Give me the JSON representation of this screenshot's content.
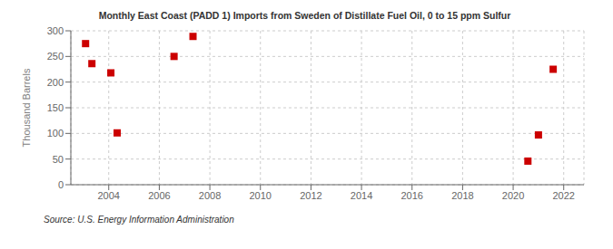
{
  "chart_data": {
    "type": "scatter",
    "title": "Monthly East Coast (PADD 1) Imports from Sweden of Distillate Fuel Oil, 0 to 15 ppm Sulfur",
    "ylabel": "Thousand Barrels",
    "annotations": [
      "Source: U.S. Energy Information Administration"
    ],
    "x": [
      2003.083,
      2003.333,
      2004.083,
      2004.333,
      2006.583,
      2007.333,
      2020.583,
      2021.0,
      2021.583
    ],
    "values": [
      275,
      236,
      218,
      101,
      250,
      289,
      46,
      97,
      225
    ],
    "color": "#cc0000",
    "marker": "square",
    "xlim": [
      2002.5,
      2022.8
    ],
    "ylim": [
      0,
      300
    ],
    "xticks": [
      2004,
      2006,
      2008,
      2010,
      2012,
      2014,
      2016,
      2018,
      2020,
      2022
    ],
    "yticks": [
      0,
      50,
      100,
      150,
      200,
      250,
      300
    ],
    "grid": true
  }
}
